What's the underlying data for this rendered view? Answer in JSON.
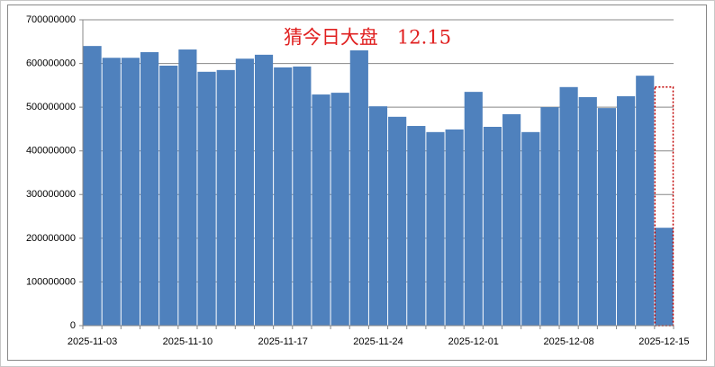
{
  "chart_data": {
    "type": "bar",
    "title": "猜今日大盘　12.15",
    "categories": [
      "2025-11-03",
      null,
      null,
      null,
      null,
      "2025-11-10",
      null,
      null,
      null,
      null,
      "2025-11-17",
      null,
      null,
      null,
      null,
      "2025-11-24",
      null,
      null,
      null,
      null,
      "2025-12-01",
      null,
      null,
      null,
      null,
      "2025-12-08",
      null,
      null,
      null,
      null,
      "2025-12-15"
    ],
    "series": [
      {
        "color": "#4f81bd",
        "values": [
          640000000,
          613000000,
          613000000,
          626000000,
          595000000,
          632000000,
          581000000,
          585000000,
          611000000,
          620000000,
          591000000,
          593000000,
          529000000,
          533000000,
          630000000,
          502000000,
          478000000,
          457000000,
          443000000,
          449000000,
          535000000,
          455000000,
          484000000,
          443000000,
          500000000,
          546000000,
          523000000,
          498000000,
          525000000,
          572000000,
          224000000
        ]
      },
      {
        "color": "#c00000",
        "style": "dotted",
        "values": [
          null,
          null,
          null,
          null,
          null,
          null,
          null,
          null,
          null,
          null,
          null,
          null,
          null,
          null,
          null,
          null,
          null,
          null,
          null,
          null,
          null,
          null,
          null,
          null,
          null,
          null,
          null,
          null,
          null,
          null,
          546000000
        ]
      }
    ],
    "ylim": [
      0,
      700000000
    ],
    "yticks": [
      0,
      100000000,
      200000000,
      300000000,
      400000000,
      500000000,
      600000000,
      700000000
    ],
    "grid": true
  }
}
